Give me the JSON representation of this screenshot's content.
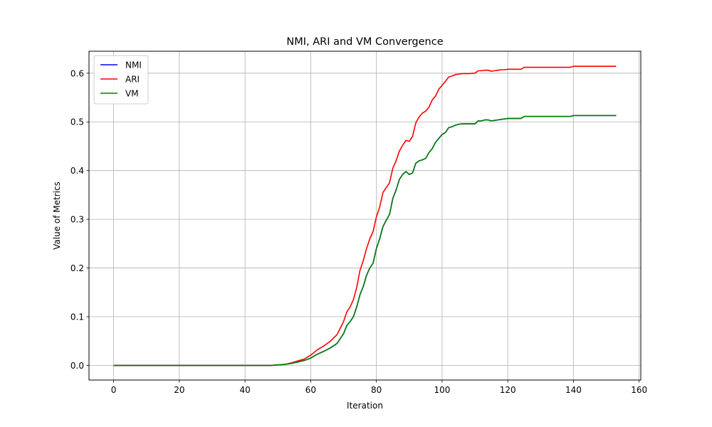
{
  "chart_data": {
    "type": "line",
    "title": "NMI, ARI and VM Convergence",
    "xlabel": "Iteration",
    "ylabel": "Value of Metrics",
    "xlim": [
      -7.5,
      160.5
    ],
    "ylim": [
      -0.03,
      0.645
    ],
    "xticks": [
      0,
      20,
      40,
      60,
      80,
      100,
      120,
      140,
      160
    ],
    "yticks": [
      0.0,
      0.1,
      0.2,
      0.3,
      0.4,
      0.5,
      0.6
    ],
    "xtick_labels": [
      "0",
      "20",
      "40",
      "60",
      "80",
      "100",
      "120",
      "140",
      "160"
    ],
    "ytick_labels": [
      "0.0",
      "0.1",
      "0.2",
      "0.3",
      "0.4",
      "0.5",
      "0.6"
    ],
    "grid": true,
    "legend_position": "top-left",
    "series": [
      {
        "name": "NMI",
        "color": "#0000ff",
        "x": [
          0,
          20,
          40,
          48,
          50,
          52,
          54,
          56,
          58,
          60,
          62,
          64,
          66,
          68,
          70,
          71,
          72,
          73,
          74,
          75,
          76,
          77,
          78,
          79,
          80,
          81,
          82,
          83,
          84,
          85,
          86,
          87,
          88,
          89,
          90,
          91,
          92,
          93,
          94,
          95,
          96,
          97,
          98,
          99,
          100,
          101,
          102,
          103,
          104,
          105,
          106,
          108,
          110,
          111,
          112,
          113,
          114,
          115,
          116,
          117,
          118,
          119,
          120,
          122,
          124,
          125,
          130,
          135,
          139,
          140,
          145,
          150,
          153
        ],
        "y": [
          0.0,
          0.0,
          0.0,
          0.0,
          0.001,
          0.002,
          0.004,
          0.007,
          0.01,
          0.015,
          0.023,
          0.029,
          0.036,
          0.045,
          0.065,
          0.082,
          0.09,
          0.1,
          0.12,
          0.145,
          0.162,
          0.185,
          0.2,
          0.21,
          0.24,
          0.26,
          0.285,
          0.298,
          0.31,
          0.343,
          0.36,
          0.382,
          0.392,
          0.398,
          0.392,
          0.395,
          0.415,
          0.42,
          0.422,
          0.425,
          0.437,
          0.445,
          0.458,
          0.466,
          0.474,
          0.478,
          0.488,
          0.49,
          0.493,
          0.495,
          0.496,
          0.496,
          0.496,
          0.502,
          0.502,
          0.504,
          0.504,
          0.502,
          0.503,
          0.504,
          0.505,
          0.506,
          0.507,
          0.507,
          0.507,
          0.511,
          0.511,
          0.511,
          0.511,
          0.513,
          0.513,
          0.513,
          0.513
        ]
      },
      {
        "name": "ARI",
        "color": "#ff0000",
        "x": [
          0,
          20,
          40,
          48,
          50,
          52,
          54,
          56,
          58,
          60,
          62,
          64,
          66,
          68,
          70,
          71,
          72,
          73,
          74,
          75,
          76,
          77,
          78,
          79,
          80,
          81,
          82,
          83,
          84,
          85,
          86,
          87,
          88,
          89,
          90,
          91,
          92,
          93,
          94,
          95,
          96,
          97,
          98,
          99,
          100,
          101,
          102,
          103,
          104,
          105,
          106,
          108,
          110,
          111,
          112,
          113,
          114,
          115,
          116,
          117,
          118,
          119,
          120,
          122,
          124,
          125,
          130,
          135,
          139,
          140,
          145,
          150,
          153
        ],
        "y": [
          0.0,
          0.0,
          0.0,
          0.0,
          0.001,
          0.002,
          0.005,
          0.009,
          0.013,
          0.021,
          0.032,
          0.04,
          0.05,
          0.063,
          0.09,
          0.11,
          0.12,
          0.135,
          0.16,
          0.195,
          0.215,
          0.24,
          0.26,
          0.275,
          0.305,
          0.325,
          0.355,
          0.365,
          0.375,
          0.405,
          0.42,
          0.44,
          0.452,
          0.462,
          0.46,
          0.47,
          0.498,
          0.51,
          0.518,
          0.522,
          0.53,
          0.545,
          0.553,
          0.567,
          0.575,
          0.583,
          0.592,
          0.594,
          0.597,
          0.598,
          0.599,
          0.599,
          0.6,
          0.605,
          0.605,
          0.606,
          0.606,
          0.604,
          0.605,
          0.606,
          0.607,
          0.607,
          0.608,
          0.608,
          0.608,
          0.612,
          0.612,
          0.612,
          0.612,
          0.614,
          0.614,
          0.614,
          0.614
        ]
      },
      {
        "name": "VM",
        "color": "#008000",
        "x": [
          0,
          20,
          40,
          48,
          50,
          52,
          54,
          56,
          58,
          60,
          62,
          64,
          66,
          68,
          70,
          71,
          72,
          73,
          74,
          75,
          76,
          77,
          78,
          79,
          80,
          81,
          82,
          83,
          84,
          85,
          86,
          87,
          88,
          89,
          90,
          91,
          92,
          93,
          94,
          95,
          96,
          97,
          98,
          99,
          100,
          101,
          102,
          103,
          104,
          105,
          106,
          108,
          110,
          111,
          112,
          113,
          114,
          115,
          116,
          117,
          118,
          119,
          120,
          122,
          124,
          125,
          130,
          135,
          139,
          140,
          145,
          150,
          153
        ],
        "y": [
          0.0,
          0.0,
          0.0,
          0.0,
          0.001,
          0.002,
          0.004,
          0.007,
          0.01,
          0.015,
          0.023,
          0.029,
          0.036,
          0.045,
          0.065,
          0.082,
          0.09,
          0.1,
          0.12,
          0.145,
          0.162,
          0.185,
          0.2,
          0.21,
          0.24,
          0.26,
          0.285,
          0.298,
          0.31,
          0.343,
          0.36,
          0.382,
          0.392,
          0.398,
          0.392,
          0.395,
          0.415,
          0.42,
          0.422,
          0.425,
          0.437,
          0.445,
          0.458,
          0.466,
          0.474,
          0.478,
          0.488,
          0.49,
          0.493,
          0.495,
          0.496,
          0.496,
          0.496,
          0.502,
          0.502,
          0.504,
          0.504,
          0.502,
          0.503,
          0.504,
          0.505,
          0.506,
          0.507,
          0.507,
          0.507,
          0.511,
          0.511,
          0.511,
          0.511,
          0.513,
          0.513,
          0.513,
          0.513
        ]
      }
    ]
  }
}
